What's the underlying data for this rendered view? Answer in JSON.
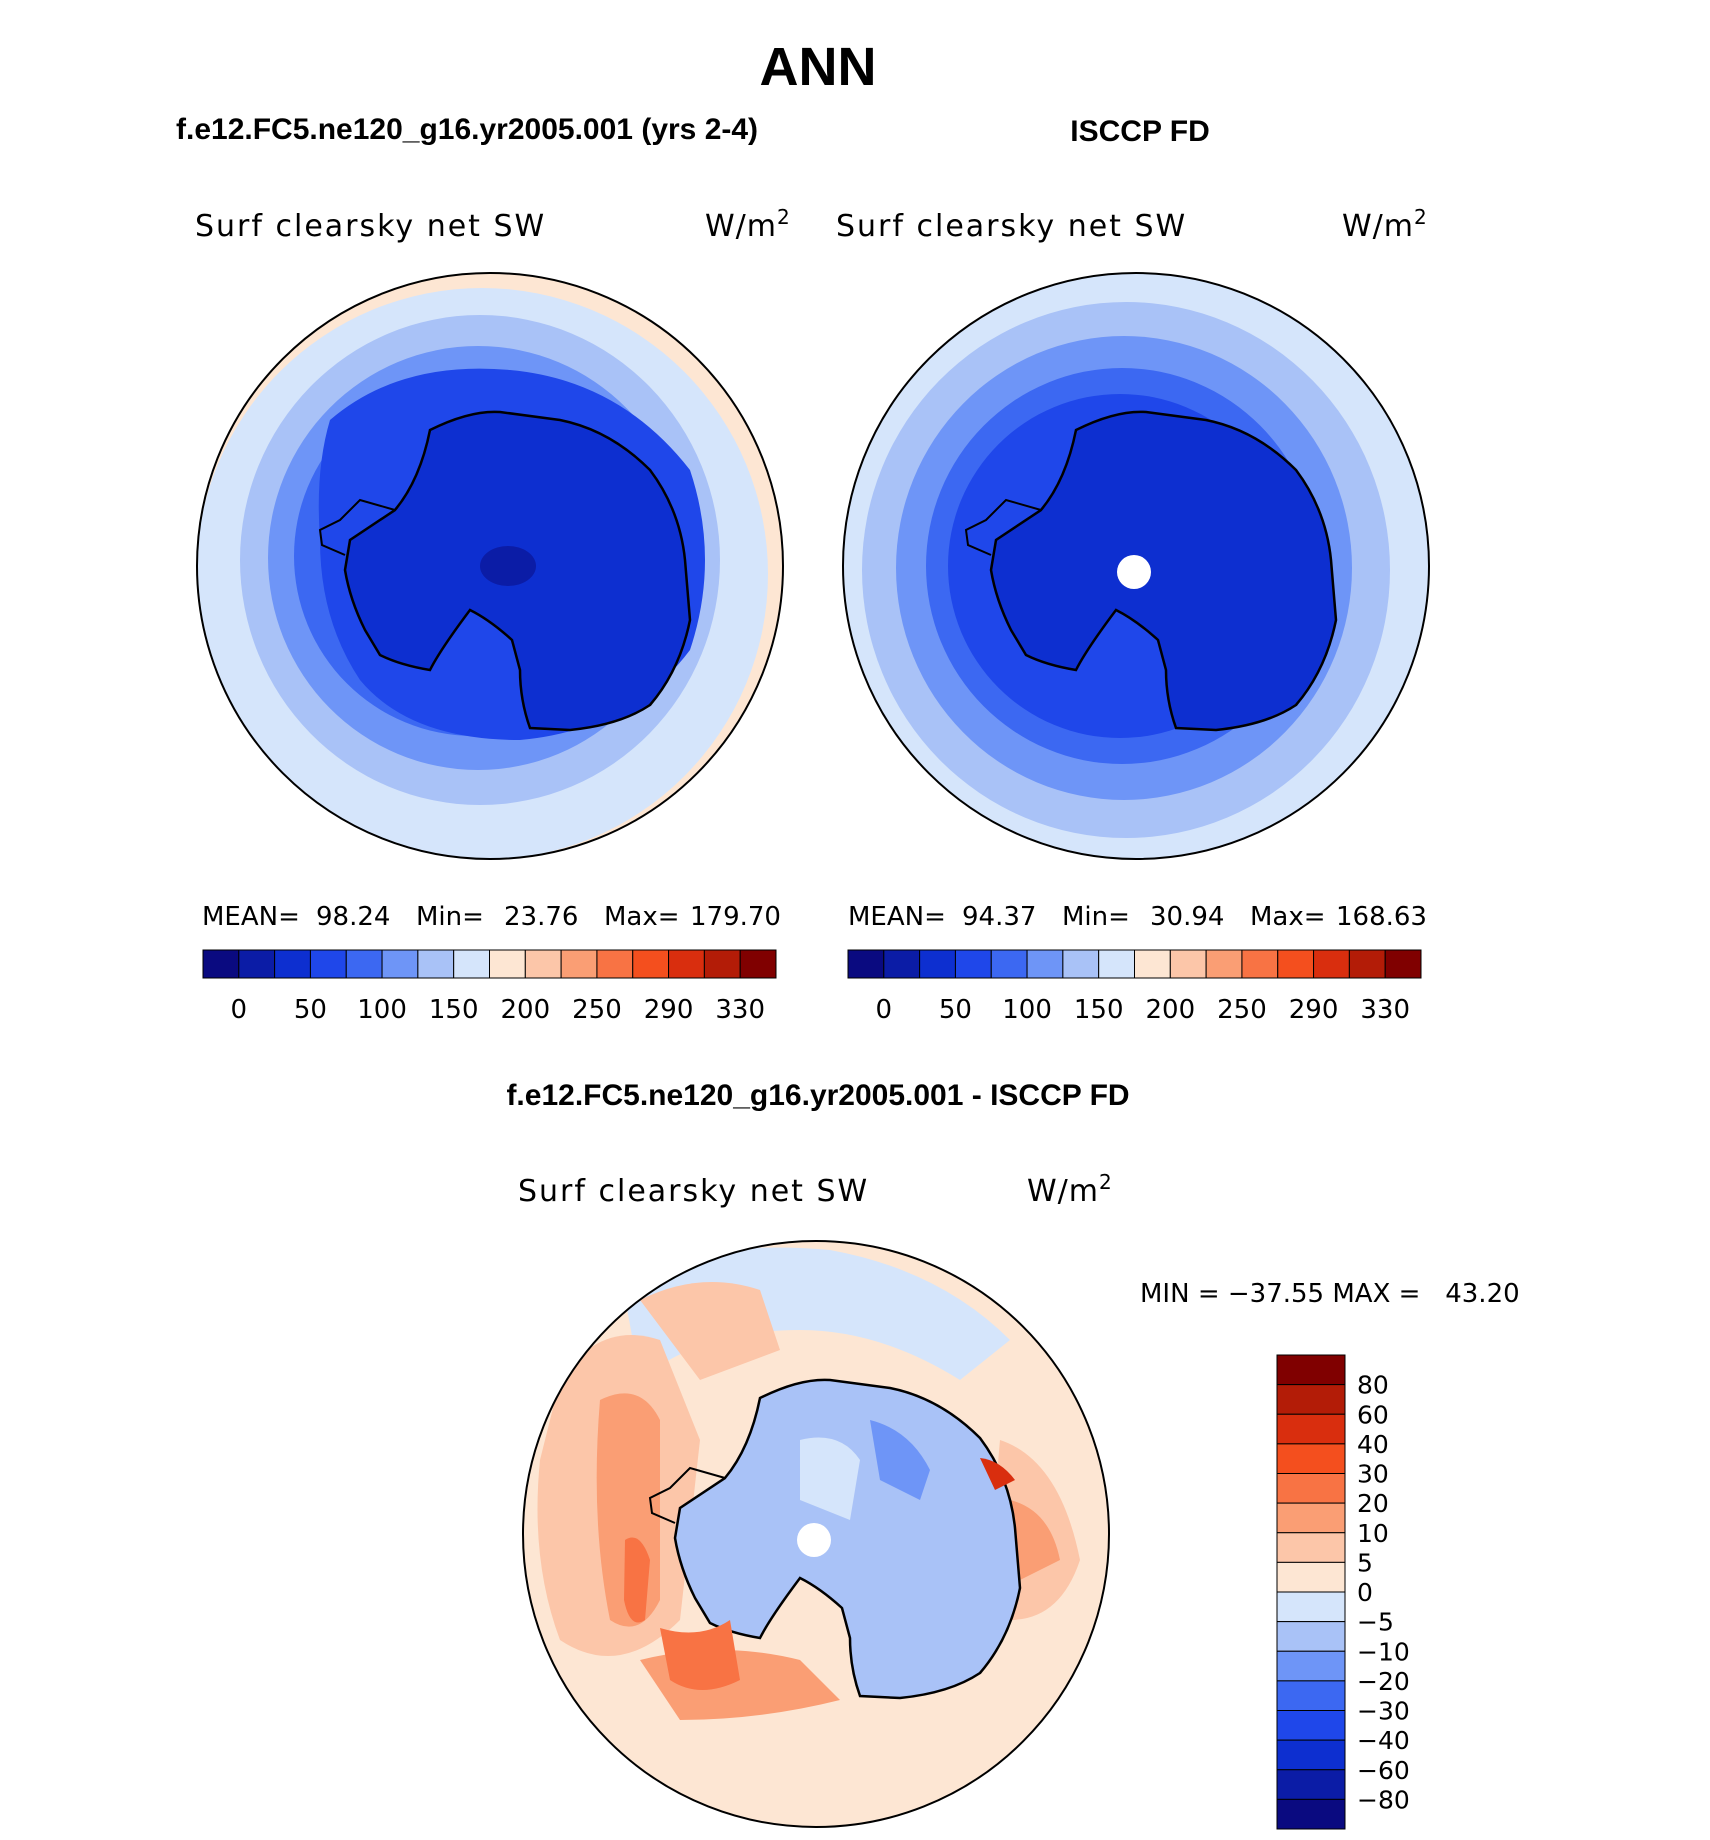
{
  "figure": {
    "season": "ANN",
    "left_title": "f.e12.FC5.ne120_g16.yr2005.001 (yrs 2-4)",
    "right_title": "ISCCP FD",
    "diff_title": "f.e12.FC5.ne120_g16.yr2005.001 - ISCCP FD"
  },
  "panels": {
    "model": {
      "variable": "Surf clearsky net SW",
      "units_base": "W/m",
      "units_exp": "2",
      "stats": {
        "mean_label": "MEAN=",
        "mean": "98.24",
        "min_label": "Min=",
        "min": "23.76",
        "max_label": "Max=",
        "max": "179.70"
      }
    },
    "obs": {
      "variable": "Surf clearsky net SW",
      "units_base": "W/m",
      "units_exp": "2",
      "stats": {
        "mean_label": "MEAN=",
        "mean": "94.37",
        "min_label": "Min=",
        "min": "30.94",
        "max_label": "Max=",
        "max": "168.63"
      }
    },
    "diff": {
      "variable": "Surf clearsky net SW",
      "units_base": "W/m",
      "units_exp": "2",
      "minmax_text": "MIN = −37.55 MAX =   43.20"
    }
  },
  "colorbars": {
    "abs": {
      "colors": [
        "#0a0a80",
        "#0b1ca6",
        "#0d2fd0",
        "#1f47ea",
        "#3c68f2",
        "#6e95f7",
        "#a9c2f7",
        "#d5e5fb",
        "#fde6d3",
        "#fcc6a9",
        "#fa9e74",
        "#f87344",
        "#f44f1e",
        "#d92e0e",
        "#b31c07",
        "#800000"
      ],
      "labels": [
        "0",
        "50",
        "100",
        "150",
        "200",
        "250",
        "290",
        "330"
      ]
    },
    "diff": {
      "colors": [
        "#800000",
        "#b31c07",
        "#d92e0e",
        "#f44f1e",
        "#f87344",
        "#fa9e74",
        "#fcc6a9",
        "#fde6d3",
        "#d5e5fb",
        "#a9c2f7",
        "#6e95f7",
        "#3c68f2",
        "#1f47ea",
        "#0d2fd0",
        "#0b1ca6",
        "#0a0a80"
      ],
      "labels": [
        "80",
        "60",
        "40",
        "30",
        "20",
        "10",
        "5",
        "0",
        "−5",
        "−10",
        "−20",
        "−30",
        "−40",
        "−60",
        "−80"
      ]
    }
  }
}
